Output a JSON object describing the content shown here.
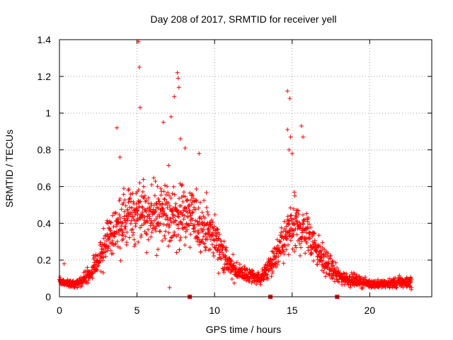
{
  "chart_data": {
    "type": "scatter",
    "title": "Day 208 of 2017, SRMTID for receiver yell",
    "xlabel": "GPS time / hours",
    "ylabel": "SRMTID / TECUs",
    "xlim": [
      0,
      24
    ],
    "ylim": [
      0,
      1.4
    ],
    "xticks": [
      0,
      5,
      10,
      15,
      20
    ],
    "xtick_labels": [
      "0",
      "5",
      "10",
      "15",
      "20"
    ],
    "yticks": [
      0,
      0.2,
      0.4,
      0.6,
      0.8,
      1.0,
      1.2,
      1.4
    ],
    "ytick_labels": [
      "0",
      "0.2",
      "0.4",
      "0.6",
      "0.8",
      "1",
      "1.2",
      "1.4"
    ],
    "grid": true,
    "marker": "+",
    "color": "#ff0000",
    "data_gap_markers_x": [
      8.4,
      13.6,
      17.9
    ],
    "series": [
      {
        "name": "SRMTID",
        "envelope": [
          {
            "x": 0.0,
            "median": 0.08,
            "spread": 0.02
          },
          {
            "x": 1.0,
            "median": 0.07,
            "spread": 0.02
          },
          {
            "x": 2.0,
            "median": 0.12,
            "spread": 0.04
          },
          {
            "x": 3.0,
            "median": 0.3,
            "spread": 0.1
          },
          {
            "x": 4.0,
            "median": 0.4,
            "spread": 0.14
          },
          {
            "x": 5.0,
            "median": 0.45,
            "spread": 0.15
          },
          {
            "x": 6.0,
            "median": 0.45,
            "spread": 0.16
          },
          {
            "x": 7.0,
            "median": 0.45,
            "spread": 0.17
          },
          {
            "x": 8.0,
            "median": 0.45,
            "spread": 0.17
          },
          {
            "x": 9.0,
            "median": 0.4,
            "spread": 0.14
          },
          {
            "x": 10.0,
            "median": 0.33,
            "spread": 0.12
          },
          {
            "x": 11.0,
            "median": 0.16,
            "spread": 0.06
          },
          {
            "x": 12.0,
            "median": 0.12,
            "spread": 0.04
          },
          {
            "x": 13.0,
            "median": 0.1,
            "spread": 0.03
          },
          {
            "x": 14.0,
            "median": 0.22,
            "spread": 0.08
          },
          {
            "x": 15.0,
            "median": 0.38,
            "spread": 0.14
          },
          {
            "x": 16.0,
            "median": 0.35,
            "spread": 0.12
          },
          {
            "x": 17.0,
            "median": 0.2,
            "spread": 0.07
          },
          {
            "x": 18.0,
            "median": 0.11,
            "spread": 0.04
          },
          {
            "x": 19.0,
            "median": 0.09,
            "spread": 0.03
          },
          {
            "x": 20.0,
            "median": 0.07,
            "spread": 0.02
          },
          {
            "x": 21.0,
            "median": 0.07,
            "spread": 0.02
          },
          {
            "x": 22.0,
            "median": 0.08,
            "spread": 0.03
          },
          {
            "x": 22.7,
            "median": 0.08,
            "spread": 0.03
          }
        ],
        "outliers": [
          {
            "x": 0.3,
            "y": 0.18
          },
          {
            "x": 3.7,
            "y": 0.92
          },
          {
            "x": 3.9,
            "y": 0.76
          },
          {
            "x": 5.1,
            "y": 1.39
          },
          {
            "x": 5.15,
            "y": 1.25
          },
          {
            "x": 5.2,
            "y": 1.03
          },
          {
            "x": 6.7,
            "y": 0.95
          },
          {
            "x": 7.2,
            "y": 0.98
          },
          {
            "x": 7.4,
            "y": 1.09
          },
          {
            "x": 7.6,
            "y": 1.22
          },
          {
            "x": 7.65,
            "y": 1.19
          },
          {
            "x": 7.7,
            "y": 1.14
          },
          {
            "x": 7.8,
            "y": 0.86
          },
          {
            "x": 8.1,
            "y": 0.81
          },
          {
            "x": 9.0,
            "y": 0.78
          },
          {
            "x": 7.1,
            "y": 0.05
          },
          {
            "x": 14.7,
            "y": 1.12
          },
          {
            "x": 14.85,
            "y": 1.08
          },
          {
            "x": 14.7,
            "y": 0.91
          },
          {
            "x": 14.9,
            "y": 0.87
          },
          {
            "x": 15.6,
            "y": 0.93
          },
          {
            "x": 15.7,
            "y": 0.87
          },
          {
            "x": 14.8,
            "y": 0.8
          },
          {
            "x": 15.0,
            "y": 0.78
          }
        ]
      }
    ]
  }
}
